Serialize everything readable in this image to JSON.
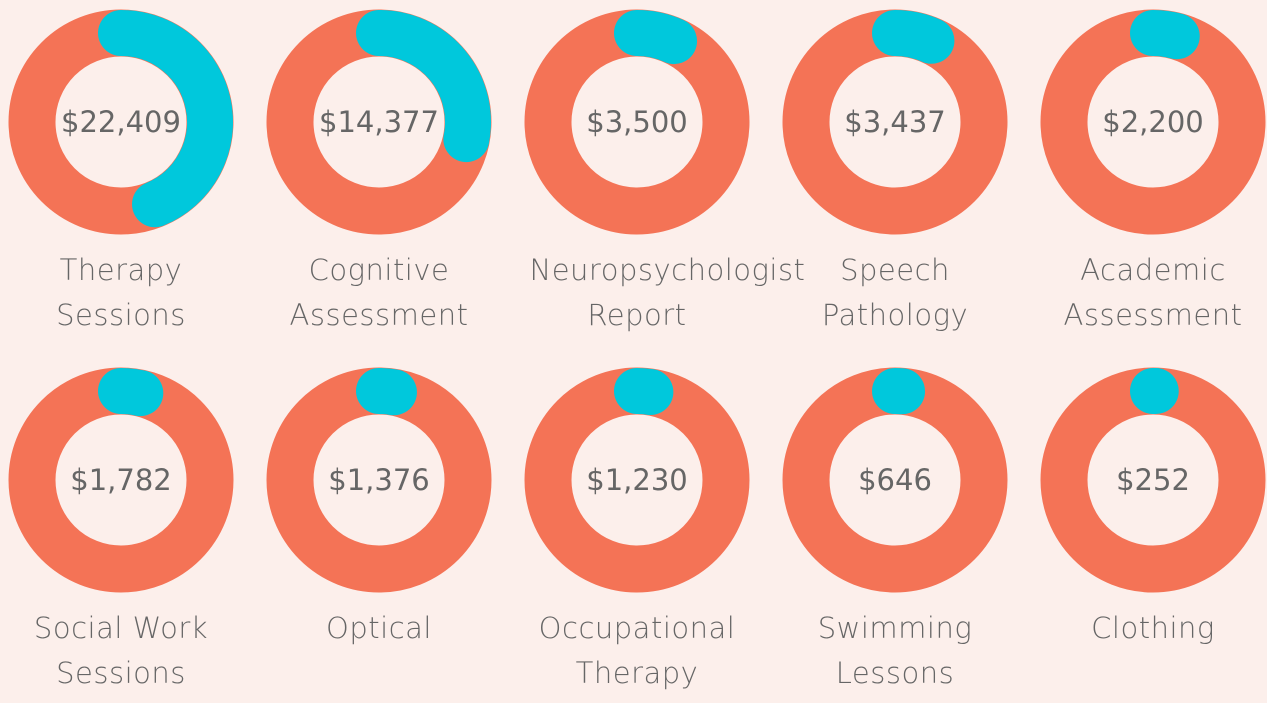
{
  "chart_data": {
    "type": "donut",
    "categories": [
      "Therapy Sessions",
      "Cognitive Assessment",
      "Neuropsychologist Report",
      "Speech Pathology",
      "Academic Assessment",
      "Social Work Sessions",
      "Optical",
      "Occupational Therapy",
      "Swimming Lessons",
      "Clothing"
    ],
    "values": [
      22409,
      14377,
      3500,
      3437,
      2200,
      1782,
      1376,
      1230,
      646,
      252
    ],
    "value_labels": [
      "$22,409",
      "$14,377",
      "$3,500",
      "$3,437",
      "$2,200",
      "$1,782",
      "$1,376",
      "$1,230",
      "$646",
      "$252"
    ],
    "color": "#00c8dc",
    "ring_color": "#f47356"
  }
}
